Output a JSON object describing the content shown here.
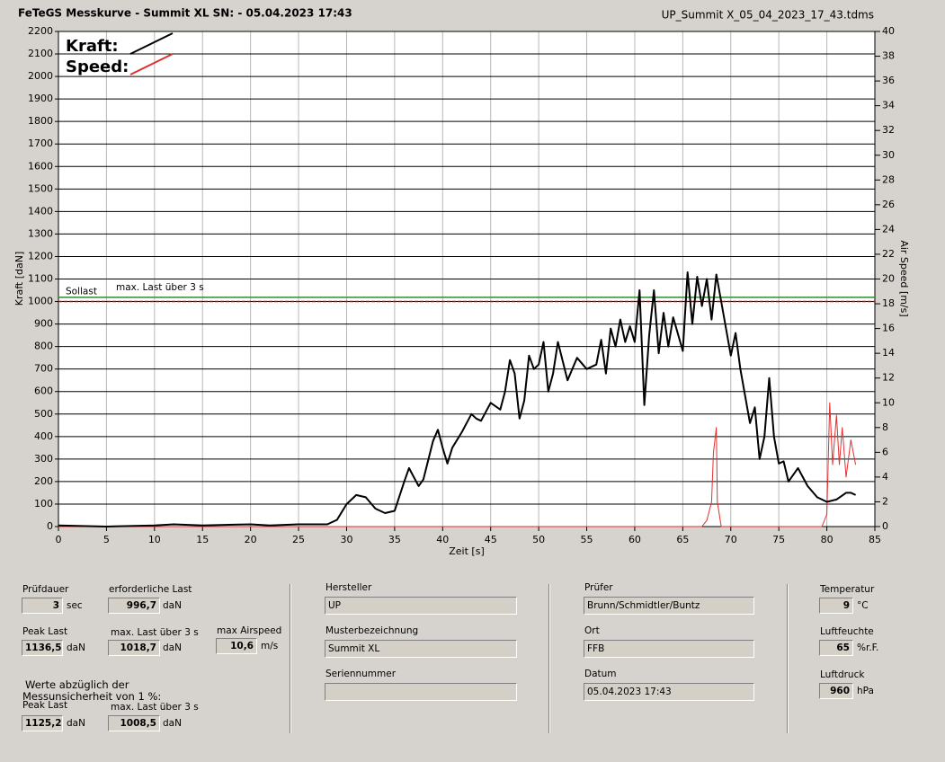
{
  "chart_data": {
    "type": "line",
    "title": "FeTeGS Messkurve - Summit XL  SN:  - 05.04.2023 17:43",
    "file_name": "UP_Summit X_05_04_2023_17_43.tdms",
    "x_label": "Zeit [s]",
    "y_label": "Kraft [daN]",
    "y2_label": "Air Speed [m/s]",
    "xlim": [
      0,
      85
    ],
    "xticks": [
      0,
      5,
      10,
      15,
      20,
      25,
      30,
      35,
      40,
      45,
      50,
      55,
      60,
      65,
      70,
      75,
      80,
      85
    ],
    "ylim": [
      0,
      2200
    ],
    "yticks": [
      0,
      100,
      200,
      300,
      400,
      500,
      600,
      700,
      800,
      900,
      1000,
      1100,
      1200,
      1300,
      1400,
      1500,
      1600,
      1700,
      1800,
      1900,
      2000,
      2100,
      2200
    ],
    "y2lim": [
      0,
      40
    ],
    "y2ticks": [
      0,
      2,
      4,
      6,
      8,
      10,
      12,
      14,
      16,
      18,
      20,
      22,
      24,
      26,
      28,
      30,
      32,
      34,
      36,
      38,
      40
    ],
    "grid": true,
    "reference_lines": [
      {
        "label": "Sollast",
        "value": 1000,
        "color": "#c00000",
        "dashed": true
      },
      {
        "label": "max. Last über  3 s",
        "value": 1018.7,
        "color": "#2e8b2e",
        "dashed": false
      }
    ],
    "series": [
      {
        "name": "Kraft:",
        "color": "#000000",
        "x": [
          0,
          5,
          10,
          12,
          15,
          20,
          22,
          25,
          28,
          29,
          30,
          31,
          32,
          33,
          34,
          35,
          36,
          36.5,
          37,
          37.5,
          38,
          39,
          39.5,
          40,
          40.5,
          41,
          42,
          43,
          43.5,
          44,
          45,
          46,
          46.5,
          47,
          47.5,
          48,
          48.5,
          49,
          49.5,
          50,
          50.5,
          51,
          51.5,
          52,
          53,
          54,
          55,
          56,
          56.5,
          57,
          57.5,
          58,
          58.5,
          59,
          59.5,
          60,
          60.5,
          61,
          61.5,
          62,
          62.5,
          63,
          63.5,
          64,
          65,
          65.5,
          66,
          66.5,
          67,
          67.5,
          68,
          68.5,
          69,
          70,
          70.5,
          71,
          72,
          72.5,
          73,
          73.5,
          74,
          74.5,
          75,
          75.5,
          76,
          77,
          78,
          79,
          80,
          81,
          82,
          82.5,
          83
        ],
        "values": [
          5,
          0,
          5,
          10,
          5,
          10,
          5,
          10,
          10,
          30,
          100,
          140,
          130,
          80,
          60,
          70,
          200,
          260,
          220,
          180,
          210,
          380,
          430,
          350,
          280,
          350,
          420,
          500,
          480,
          470,
          550,
          520,
          600,
          740,
          680,
          480,
          560,
          760,
          700,
          720,
          820,
          600,
          680,
          820,
          650,
          750,
          700,
          720,
          830,
          680,
          880,
          800,
          920,
          820,
          890,
          820,
          1050,
          540,
          850,
          1050,
          770,
          950,
          800,
          930,
          780,
          1130,
          900,
          1110,
          980,
          1100,
          920,
          1120,
          1000,
          760,
          860,
          700,
          460,
          530,
          300,
          400,
          660,
          400,
          280,
          290,
          200,
          260,
          180,
          130,
          110,
          120,
          150,
          150,
          140
        ]
      },
      {
        "name": "Speed:",
        "color": "#e03030",
        "axis": "y2",
        "x": [
          0,
          67,
          67.5,
          68,
          68.2,
          68.5,
          68.6,
          69,
          79.5,
          80,
          80.3,
          80.6,
          81,
          81.3,
          81.6,
          82,
          82.5,
          83
        ],
        "values": [
          0,
          0,
          0.5,
          2,
          6,
          8,
          2,
          0,
          0,
          1,
          10,
          5,
          9,
          5,
          8,
          4,
          7,
          5
        ]
      }
    ]
  },
  "panel": {
    "fields": [
      {
        "label": "Prüfdauer",
        "value": "3",
        "unit": "sec"
      },
      {
        "label": "erforderliche Last",
        "value": "996,7",
        "unit": "daN"
      },
      {
        "label": "Peak Last",
        "value": "1136,5",
        "unit": "daN"
      },
      {
        "label": "max. Last über  3 s",
        "value": "1018,7",
        "unit": "daN"
      },
      {
        "label": "max Airspeed",
        "value": "10,6",
        "unit": "m/s"
      },
      {
        "label": "Peak Last",
        "value": "1125,2",
        "unit": "daN"
      },
      {
        "label": "max. Last über  3 s",
        "value": "1008,5",
        "unit": "daN"
      },
      {
        "label": "Hersteller",
        "value": "UP"
      },
      {
        "label": "Musterbezeichnung",
        "value": "Summit XL"
      },
      {
        "label": "Seriennummer"
      },
      {
        "label": "Prüfer",
        "value": "Brunn/Schmidtler/Buntz"
      },
      {
        "label": "Ort",
        "value": "FFB"
      },
      {
        "label": "Datum",
        "value": "05.04.2023 17:43"
      },
      {
        "label": "Temperatur",
        "value": "9",
        "unit": "°C"
      },
      {
        "label": "Luftfeuchte",
        "value": "65",
        "unit": "%r.F."
      },
      {
        "label": "Luftdruck",
        "value": "960",
        "unit": "hPa"
      }
    ],
    "note": [
      "Werte abzüglich der",
      "Messunsicherheit von 1  %:"
    ]
  }
}
